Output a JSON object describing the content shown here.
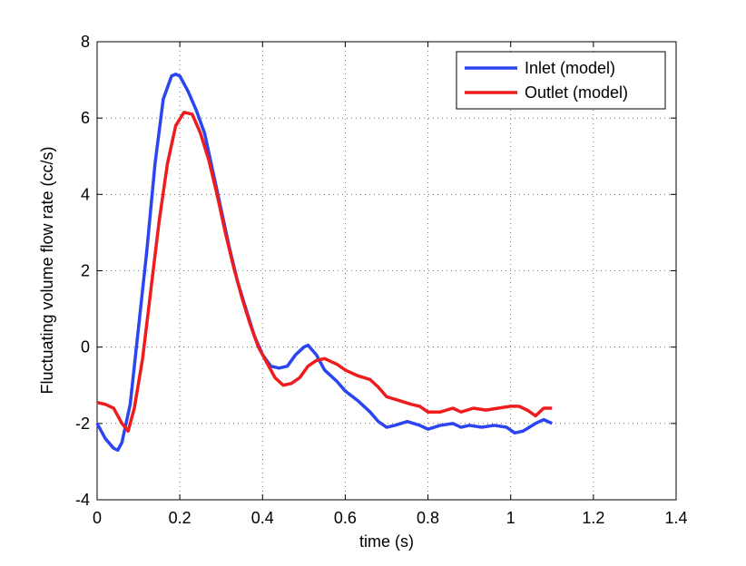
{
  "chart_data": {
    "type": "line",
    "xlabel": "time (s)",
    "ylabel": "Fluctuating volume flow rate (cc/s)",
    "xlim": [
      0,
      1.4
    ],
    "xticks": [
      0,
      0.2,
      0.4,
      0.6,
      0.8,
      1,
      1.2,
      1.4
    ],
    "ylim": [
      -4,
      8
    ],
    "yticks": [
      -4,
      -2,
      0,
      2,
      4,
      6,
      8
    ],
    "grid": true,
    "legend": "upper right",
    "series": [
      {
        "name": "Inlet (model)",
        "color": "#2b45f0",
        "x": [
          0,
          0.02,
          0.04,
          0.05,
          0.06,
          0.08,
          0.1,
          0.12,
          0.14,
          0.16,
          0.18,
          0.19,
          0.2,
          0.22,
          0.24,
          0.26,
          0.28,
          0.3,
          0.32,
          0.34,
          0.36,
          0.38,
          0.4,
          0.42,
          0.44,
          0.46,
          0.48,
          0.5,
          0.51,
          0.53,
          0.55,
          0.58,
          0.6,
          0.63,
          0.66,
          0.68,
          0.7,
          0.72,
          0.75,
          0.78,
          0.8,
          0.83,
          0.86,
          0.88,
          0.9,
          0.93,
          0.96,
          0.99,
          1.01,
          1.03,
          1.06,
          1.08,
          1.1
        ],
        "values": [
          -2.0,
          -2.4,
          -2.65,
          -2.7,
          -2.5,
          -1.5,
          0.5,
          2.5,
          4.8,
          6.5,
          7.1,
          7.15,
          7.1,
          6.7,
          6.2,
          5.6,
          4.6,
          3.6,
          2.6,
          1.7,
          1.0,
          0.3,
          -0.2,
          -0.5,
          -0.55,
          -0.5,
          -0.2,
          0.0,
          0.05,
          -0.2,
          -0.6,
          -0.9,
          -1.15,
          -1.4,
          -1.7,
          -1.95,
          -2.1,
          -2.05,
          -1.95,
          -2.05,
          -2.15,
          -2.05,
          -2.0,
          -2.1,
          -2.05,
          -2.1,
          -2.05,
          -2.1,
          -2.25,
          -2.2,
          -2.0,
          -1.9,
          -2.0
        ]
      },
      {
        "name": "Outlet (model)",
        "color": "#ee1c1c",
        "x": [
          0,
          0.02,
          0.04,
          0.05,
          0.06,
          0.075,
          0.09,
          0.11,
          0.13,
          0.15,
          0.17,
          0.19,
          0.21,
          0.23,
          0.25,
          0.27,
          0.29,
          0.31,
          0.33,
          0.35,
          0.37,
          0.39,
          0.41,
          0.43,
          0.45,
          0.47,
          0.49,
          0.51,
          0.53,
          0.55,
          0.58,
          0.6,
          0.63,
          0.66,
          0.68,
          0.7,
          0.73,
          0.76,
          0.78,
          0.8,
          0.83,
          0.86,
          0.88,
          0.91,
          0.94,
          0.97,
          1.0,
          1.02,
          1.04,
          1.06,
          1.08,
          1.1
        ],
        "values": [
          -1.45,
          -1.5,
          -1.6,
          -1.8,
          -2.0,
          -2.2,
          -1.6,
          -0.3,
          1.5,
          3.3,
          4.8,
          5.8,
          6.15,
          6.1,
          5.6,
          4.9,
          4.0,
          3.0,
          2.1,
          1.3,
          0.6,
          0.0,
          -0.4,
          -0.8,
          -1.0,
          -0.95,
          -0.8,
          -0.5,
          -0.35,
          -0.3,
          -0.45,
          -0.6,
          -0.75,
          -0.85,
          -1.05,
          -1.3,
          -1.4,
          -1.5,
          -1.55,
          -1.7,
          -1.7,
          -1.6,
          -1.7,
          -1.6,
          -1.65,
          -1.6,
          -1.55,
          -1.55,
          -1.65,
          -1.8,
          -1.6,
          -1.6
        ]
      }
    ]
  }
}
